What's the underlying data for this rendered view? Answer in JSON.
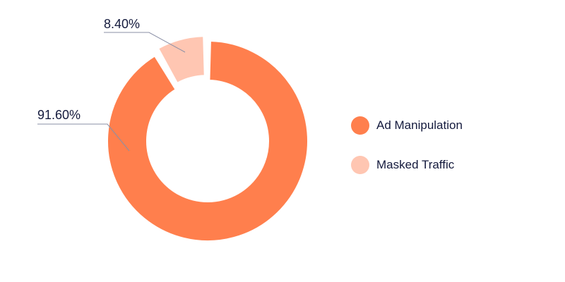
{
  "chart_data": {
    "type": "pie",
    "variant": "donut",
    "title": "",
    "categories": [
      "Ad Manipulation",
      "Masked Traffic"
    ],
    "values": [
      91.6,
      8.4
    ],
    "value_labels": [
      "91.60%",
      "8.40%"
    ],
    "colors": [
      "#ff7f4d",
      "#ffc6b2"
    ],
    "legend_position": "right"
  }
}
